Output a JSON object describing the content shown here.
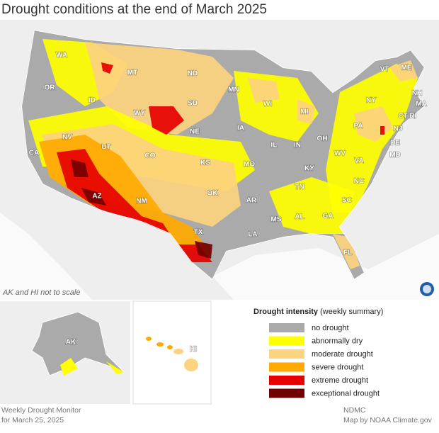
{
  "header": {
    "title": "Drought conditions at the end of March 2025"
  },
  "map": {
    "state_labels": [
      "WA",
      "OR",
      "CA",
      "NV",
      "ID",
      "MT",
      "WY",
      "UT",
      "AZ",
      "CO",
      "NM",
      "ND",
      "SD",
      "NE",
      "KS",
      "OK",
      "TX",
      "MN",
      "IA",
      "MO",
      "AR",
      "LA",
      "WI",
      "IL",
      "MS",
      "MI",
      "IN",
      "KY",
      "TN",
      "AL",
      "GA",
      "FL",
      "OH",
      "WV",
      "VA",
      "NC",
      "SC",
      "PA",
      "NY",
      "VT",
      "ME",
      "NH",
      "MA",
      "CT",
      "RI",
      "NJ",
      "DE",
      "MD"
    ],
    "inset_labels": [
      "AK",
      "HI"
    ],
    "scale_note": "AK and HI not to scale"
  },
  "legend": {
    "title": "Drought intensity",
    "subtitle": "(weekly summary)",
    "items": [
      {
        "label": "no drought",
        "color": "#aaaaaa"
      },
      {
        "label": "abnormally dry",
        "color": "#ffff00"
      },
      {
        "label": "moderate drought",
        "color": "#fcd37f"
      },
      {
        "label": "severe drought",
        "color": "#ffaa00"
      },
      {
        "label": "extreme drought",
        "color": "#e60000"
      },
      {
        "label": "exceptional drought",
        "color": "#730000"
      }
    ]
  },
  "footer": {
    "left": [
      "Weekly Drought Monitor",
      "for March 25, 2025"
    ],
    "right": [
      "NDMC",
      "Map by NOAA Climate.gov"
    ]
  }
}
